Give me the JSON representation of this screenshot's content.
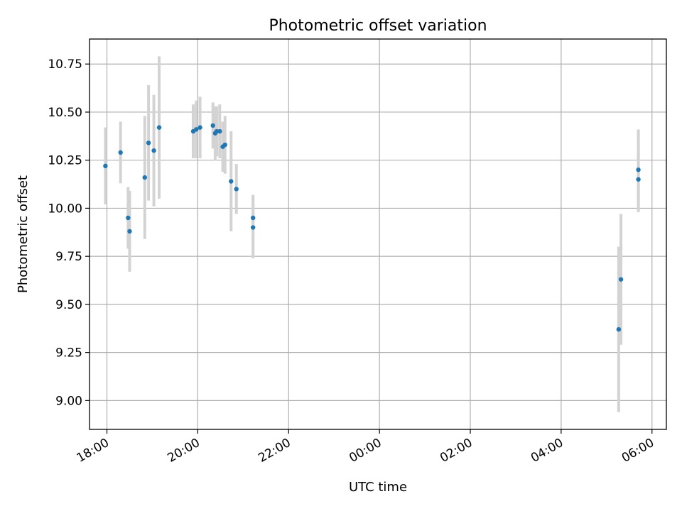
{
  "chart_data": {
    "type": "scatter",
    "title": "Photometric offset variation",
    "xlabel": "UTC time",
    "ylabel": "Photometric offset",
    "x_axis": {
      "kind": "time",
      "range": [
        "17:37",
        "06:19"
      ],
      "ticks": [
        "18:00",
        "20:00",
        "22:00",
        "00:00",
        "02:00",
        "04:00",
        "06:00"
      ]
    },
    "y_axis": {
      "range": [
        8.85,
        10.88
      ],
      "ticks": [
        "9.00",
        "9.25",
        "9.50",
        "9.75",
        "10.00",
        "10.25",
        "10.50",
        "10.75"
      ]
    },
    "grid": true,
    "marker_color": "#1f77b4",
    "errorbar_color": "#d3d3d3",
    "points": [
      {
        "t": "17:58",
        "y": 10.22,
        "err": 0.2
      },
      {
        "t": "18:18",
        "y": 10.29,
        "err": 0.16
      },
      {
        "t": "18:28",
        "y": 9.95,
        "err": 0.16
      },
      {
        "t": "18:30",
        "y": 9.88,
        "err": 0.21
      },
      {
        "t": "18:50",
        "y": 10.16,
        "err": 0.32
      },
      {
        "t": "18:55",
        "y": 10.34,
        "err": 0.3
      },
      {
        "t": "19:02",
        "y": 10.3,
        "err": 0.29
      },
      {
        "t": "19:09",
        "y": 10.42,
        "err": 0.37
      },
      {
        "t": "19:54",
        "y": 10.4,
        "err": 0.14
      },
      {
        "t": "19:58",
        "y": 10.41,
        "err": 0.15
      },
      {
        "t": "20:03",
        "y": 10.42,
        "err": 0.16
      },
      {
        "t": "20:20",
        "y": 10.43,
        "err": 0.12
      },
      {
        "t": "20:23",
        "y": 10.39,
        "err": 0.14
      },
      {
        "t": "20:25",
        "y": 10.4,
        "err": 0.13
      },
      {
        "t": "20:29",
        "y": 10.4,
        "err": 0.14
      },
      {
        "t": "20:33",
        "y": 10.32,
        "err": 0.13
      },
      {
        "t": "20:36",
        "y": 10.33,
        "err": 0.15
      },
      {
        "t": "20:44",
        "y": 10.14,
        "err": 0.26
      },
      {
        "t": "20:51",
        "y": 10.1,
        "err": 0.13
      },
      {
        "t": "21:13",
        "y": 9.95,
        "err": 0.12
      },
      {
        "t": "21:13",
        "y": 9.9,
        "err": 0.16
      },
      {
        "t": "05:16",
        "y": 9.37,
        "err": 0.43
      },
      {
        "t": "05:19",
        "y": 9.63,
        "err": 0.34
      },
      {
        "t": "05:42",
        "y": 10.2,
        "err": 0.21
      },
      {
        "t": "05:42",
        "y": 10.15,
        "err": 0.17
      }
    ]
  }
}
